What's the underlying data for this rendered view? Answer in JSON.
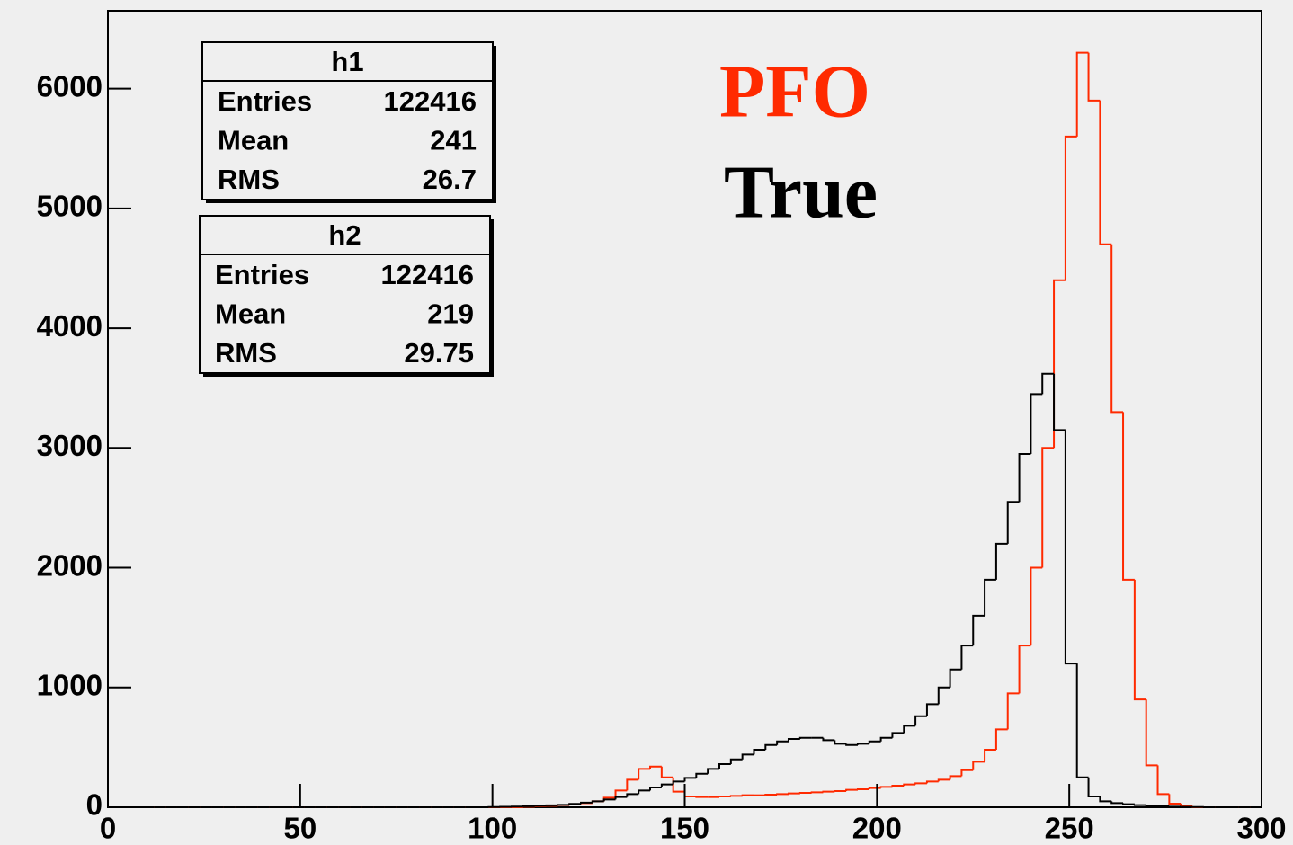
{
  "chart_data": {
    "type": "histogram",
    "bins": [
      0,
      3,
      6,
      9,
      12,
      15,
      18,
      21,
      24,
      27,
      30,
      33,
      36,
      39,
      42,
      45,
      48,
      51,
      54,
      57,
      60,
      63,
      66,
      69,
      72,
      75,
      78,
      81,
      84,
      87,
      90,
      93,
      96,
      99,
      102,
      105,
      108,
      111,
      114,
      117,
      120,
      123,
      126,
      129,
      132,
      135,
      138,
      141,
      144,
      147,
      150,
      153,
      156,
      159,
      162,
      165,
      168,
      171,
      174,
      177,
      180,
      183,
      186,
      189,
      192,
      195,
      198,
      201,
      204,
      207,
      210,
      213,
      216,
      219,
      222,
      225,
      228,
      231,
      234,
      237,
      240,
      243,
      246,
      249,
      252,
      255,
      258,
      261,
      264,
      267,
      270,
      273,
      276,
      279,
      282,
      285,
      288,
      291,
      294,
      297,
      300
    ],
    "series": [
      {
        "name": "PFO",
        "color": "#ff2a00",
        "values": [
          0,
          0,
          0,
          0,
          0,
          0,
          0,
          0,
          0,
          0,
          0,
          0,
          0,
          0,
          0,
          0,
          0,
          0,
          0,
          0,
          0,
          0,
          0,
          0,
          0,
          0,
          0,
          0,
          0,
          0,
          0,
          0,
          0,
          0,
          0,
          0,
          5,
          8,
          12,
          18,
          25,
          35,
          50,
          80,
          140,
          230,
          320,
          340,
          250,
          130,
          90,
          85,
          85,
          90,
          95,
          100,
          100,
          105,
          110,
          115,
          120,
          125,
          130,
          135,
          145,
          150,
          160,
          170,
          180,
          190,
          200,
          215,
          230,
          260,
          310,
          380,
          480,
          650,
          950,
          1350,
          2000,
          3000,
          4400,
          5600,
          6300,
          5900,
          4700,
          3300,
          1900,
          900,
          350,
          110,
          30,
          10,
          0,
          0,
          0,
          0,
          0,
          0
        ]
      },
      {
        "name": "True",
        "color": "#000000",
        "values": [
          0,
          0,
          0,
          0,
          0,
          0,
          0,
          0,
          0,
          0,
          0,
          0,
          0,
          0,
          0,
          0,
          0,
          0,
          0,
          0,
          0,
          0,
          0,
          0,
          0,
          0,
          0,
          0,
          0,
          0,
          0,
          0,
          0,
          2,
          4,
          6,
          8,
          12,
          16,
          20,
          28,
          38,
          50,
          65,
          85,
          110,
          140,
          165,
          190,
          215,
          245,
          280,
          320,
          360,
          400,
          440,
          480,
          520,
          550,
          570,
          580,
          580,
          560,
          530,
          520,
          530,
          550,
          580,
          620,
          680,
          760,
          860,
          1000,
          1150,
          1350,
          1600,
          1900,
          2200,
          2550,
          2950,
          3450,
          3620,
          3150,
          1200,
          250,
          90,
          50,
          35,
          25,
          18,
          12,
          8,
          5,
          3,
          2,
          0,
          0,
          0,
          0,
          0
        ]
      }
    ],
    "stats": [
      {
        "title": "h1",
        "rows": [
          {
            "label": "Entries",
            "value": 122416
          },
          {
            "label": "Mean",
            "value": 241
          },
          {
            "label": "RMS",
            "value": 26.7
          }
        ]
      },
      {
        "title": "h2",
        "rows": [
          {
            "label": "Entries",
            "value": 122416
          },
          {
            "label": "Mean",
            "value": 219
          },
          {
            "label": "RMS",
            "value": 29.75
          }
        ]
      }
    ],
    "xlim": [
      0,
      300
    ],
    "xticks": [
      0,
      50,
      100,
      150,
      200,
      250,
      300
    ],
    "ylim": [
      0,
      6650
    ],
    "yticks": [
      0,
      1000,
      2000,
      3000,
      4000,
      5000,
      6000
    ]
  }
}
